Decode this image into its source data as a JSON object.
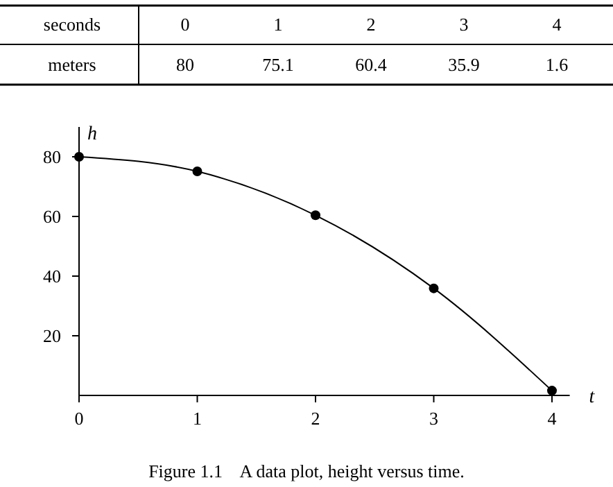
{
  "chart_data": {
    "type": "line",
    "xlabel": "t",
    "ylabel": "h",
    "x": [
      0,
      1,
      2,
      3,
      4
    ],
    "series": [
      {
        "color": "#000000",
        "values": [
          80,
          75.1,
          60.4,
          35.9,
          1.6
        ]
      }
    ],
    "xlim": [
      0,
      4.15
    ],
    "ylim": [
      0,
      90
    ],
    "xticks": [
      0,
      1,
      2,
      3,
      4
    ],
    "yticks": [
      20,
      40,
      60,
      80
    ],
    "marker": "circle",
    "line_style": "solid",
    "grid": false,
    "annotations": [
      "seconds",
      "0",
      "1",
      "2",
      "3",
      "4",
      "meters",
      "80",
      "75.1",
      "60.4",
      "35.9",
      "1.6",
      "Figure 1.1    A data plot, height versus time."
    ]
  }
}
